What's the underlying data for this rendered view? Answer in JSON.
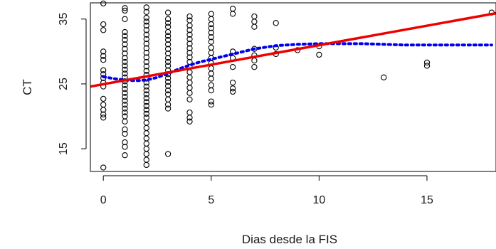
{
  "chart_data": {
    "type": "scatter",
    "title": "",
    "xlabel": "Dias desde la FIS",
    "ylabel": "CT",
    "xlim": [
      -0.6,
      18.2
    ],
    "ylim": [
      11.5,
      37.5
    ],
    "x_ticks": [
      0,
      5,
      10,
      15
    ],
    "y_ticks": [
      15,
      25,
      35
    ],
    "grid": false,
    "legend": "none",
    "colors": {
      "points": "#000000",
      "smooth_curve": "#0000ee",
      "linear_fit": "#ee0000"
    },
    "series": [
      {
        "kind": "points",
        "marker": "open-circle",
        "points": [
          [
            0,
            37.4
          ],
          [
            0,
            34.2
          ],
          [
            0,
            33.3
          ],
          [
            0,
            30.0
          ],
          [
            0,
            29.3
          ],
          [
            0,
            28.7
          ],
          [
            0,
            27.1
          ],
          [
            0,
            26.5
          ],
          [
            0,
            25.9
          ],
          [
            0,
            25.2
          ],
          [
            0,
            24.6
          ],
          [
            0,
            22.7
          ],
          [
            0,
            21.8
          ],
          [
            0,
            21.0
          ],
          [
            0,
            20.3
          ],
          [
            0,
            19.8
          ],
          [
            0,
            12.1
          ],
          [
            1,
            36.7
          ],
          [
            1,
            36.3
          ],
          [
            1,
            35.0
          ],
          [
            1,
            33.0
          ],
          [
            1,
            32.4
          ],
          [
            1,
            31.8
          ],
          [
            1,
            31.1
          ],
          [
            1,
            30.4
          ],
          [
            1,
            29.7
          ],
          [
            1,
            29.0
          ],
          [
            1,
            28.4
          ],
          [
            1,
            27.8
          ],
          [
            1,
            27.2
          ],
          [
            1,
            26.6
          ],
          [
            1,
            26.0
          ],
          [
            1,
            25.4
          ],
          [
            1,
            24.8
          ],
          [
            1,
            24.2
          ],
          [
            1,
            23.6
          ],
          [
            1,
            23.0
          ],
          [
            1,
            22.4
          ],
          [
            1,
            21.8
          ],
          [
            1,
            21.2
          ],
          [
            1,
            20.6
          ],
          [
            1,
            20.0
          ],
          [
            1,
            19.2
          ],
          [
            1,
            18.0
          ],
          [
            1,
            17.3
          ],
          [
            1,
            16.0
          ],
          [
            1,
            15.3
          ],
          [
            1,
            14.0
          ],
          [
            2,
            36.8
          ],
          [
            2,
            36.1
          ],
          [
            2,
            35.2
          ],
          [
            2,
            34.6
          ],
          [
            2,
            34.0
          ],
          [
            2,
            33.3
          ],
          [
            2,
            32.6
          ],
          [
            2,
            31.9
          ],
          [
            2,
            31.2
          ],
          [
            2,
            30.5
          ],
          [
            2,
            29.8
          ],
          [
            2,
            29.1
          ],
          [
            2,
            28.4
          ],
          [
            2,
            27.7
          ],
          [
            2,
            27.0
          ],
          [
            2,
            26.4
          ],
          [
            2,
            25.8
          ],
          [
            2,
            25.2
          ],
          [
            2,
            24.6
          ],
          [
            2,
            24.0
          ],
          [
            2,
            23.4
          ],
          [
            2,
            22.8
          ],
          [
            2,
            22.2
          ],
          [
            2,
            21.6
          ],
          [
            2,
            21.0
          ],
          [
            2,
            20.4
          ],
          [
            2,
            19.8
          ],
          [
            2,
            19.0
          ],
          [
            2,
            18.2
          ],
          [
            2,
            17.4
          ],
          [
            2,
            16.6
          ],
          [
            2,
            15.8
          ],
          [
            2,
            15.0
          ],
          [
            2,
            14.2
          ],
          [
            2,
            13.3
          ],
          [
            2,
            12.5
          ],
          [
            3,
            36.0
          ],
          [
            3,
            35.0
          ],
          [
            3,
            34.4
          ],
          [
            3,
            33.8
          ],
          [
            3,
            33.0
          ],
          [
            3,
            32.4
          ],
          [
            3,
            31.8
          ],
          [
            3,
            31.1
          ],
          [
            3,
            30.4
          ],
          [
            3,
            29.7
          ],
          [
            3,
            29.0
          ],
          [
            3,
            28.4
          ],
          [
            3,
            27.8
          ],
          [
            3,
            27.1
          ],
          [
            3,
            26.5
          ],
          [
            3,
            25.9
          ],
          [
            3,
            25.3
          ],
          [
            3,
            24.7
          ],
          [
            3,
            24.0
          ],
          [
            3,
            23.4
          ],
          [
            3,
            22.6
          ],
          [
            3,
            21.8
          ],
          [
            3,
            21.2
          ],
          [
            3,
            14.2
          ],
          [
            4,
            35.4
          ],
          [
            4,
            34.8
          ],
          [
            4,
            34.0
          ],
          [
            4,
            33.3
          ],
          [
            4,
            32.6
          ],
          [
            4,
            31.9
          ],
          [
            4,
            31.2
          ],
          [
            4,
            30.5
          ],
          [
            4,
            29.8
          ],
          [
            4,
            29.1
          ],
          [
            4,
            28.4
          ],
          [
            4,
            27.6
          ],
          [
            4,
            26.8
          ],
          [
            4,
            26.0
          ],
          [
            4,
            25.2
          ],
          [
            4,
            24.4
          ],
          [
            4,
            23.6
          ],
          [
            4,
            22.6
          ],
          [
            4,
            20.6
          ],
          [
            4,
            19.8
          ],
          [
            4,
            19.2
          ],
          [
            5,
            35.8
          ],
          [
            5,
            35.0
          ],
          [
            5,
            34.2
          ],
          [
            5,
            33.6
          ],
          [
            5,
            32.9
          ],
          [
            5,
            32.2
          ],
          [
            5,
            31.5
          ],
          [
            5,
            30.6
          ],
          [
            5,
            29.8
          ],
          [
            5,
            29.0
          ],
          [
            5,
            28.2
          ],
          [
            5,
            27.4
          ],
          [
            5,
            26.6
          ],
          [
            5,
            25.8
          ],
          [
            5,
            24.8
          ],
          [
            5,
            24.0
          ],
          [
            5,
            22.3
          ],
          [
            5,
            21.8
          ],
          [
            6,
            36.6
          ],
          [
            6,
            35.8
          ],
          [
            6,
            30.0
          ],
          [
            6,
            29.0
          ],
          [
            6,
            27.6
          ],
          [
            6,
            25.2
          ],
          [
            6,
            24.3
          ],
          [
            6,
            23.8
          ],
          [
            7,
            35.4
          ],
          [
            7,
            34.6
          ],
          [
            7,
            33.8
          ],
          [
            7,
            30.4
          ],
          [
            7,
            29.4
          ],
          [
            7,
            28.6
          ],
          [
            7,
            27.6
          ],
          [
            8,
            34.4
          ],
          [
            8,
            30.6
          ],
          [
            8,
            29.6
          ],
          [
            9,
            30.2
          ],
          [
            10,
            30.8
          ],
          [
            10,
            29.5
          ],
          [
            13,
            26.0
          ],
          [
            15,
            28.3
          ],
          [
            15,
            27.8
          ],
          [
            18,
            36.0
          ]
        ]
      },
      {
        "kind": "smooth-curve",
        "style": "dotted",
        "points": [
          [
            0,
            26.1
          ],
          [
            0.5,
            25.8
          ],
          [
            1,
            25.6
          ],
          [
            1.5,
            25.5
          ],
          [
            2,
            25.6
          ],
          [
            2.5,
            26.0
          ],
          [
            3,
            26.6
          ],
          [
            3.5,
            27.3
          ],
          [
            4,
            27.9
          ],
          [
            4.5,
            28.4
          ],
          [
            5,
            28.8
          ],
          [
            5.5,
            29.2
          ],
          [
            6,
            29.6
          ],
          [
            6.5,
            30.0
          ],
          [
            7,
            30.4
          ],
          [
            8,
            30.9
          ],
          [
            9,
            31.1
          ],
          [
            10,
            31.2
          ],
          [
            11,
            31.2
          ],
          [
            12,
            31.2
          ],
          [
            13,
            31.1
          ],
          [
            14,
            31.0
          ],
          [
            15,
            31.0
          ],
          [
            16,
            31.0
          ],
          [
            17,
            31.0
          ],
          [
            18,
            31.0
          ]
        ]
      },
      {
        "kind": "linear-fit",
        "style": "solid",
        "points": [
          [
            -0.6,
            24.6
          ],
          [
            18.2,
            35.9
          ]
        ]
      }
    ]
  }
}
